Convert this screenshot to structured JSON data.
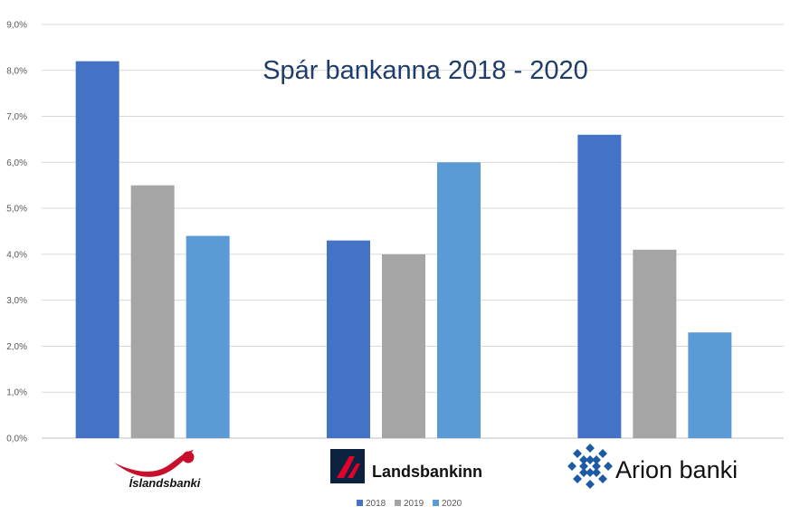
{
  "chart_data": {
    "type": "bar",
    "title": "Spár bankanna 2018 - 2020",
    "categories": [
      "Íslandsbanki",
      "Landsbankinn",
      "Arion banki"
    ],
    "series": [
      {
        "name": "2018",
        "values": [
          8.2,
          4.3,
          6.6
        ],
        "color": "#4472c4"
      },
      {
        "name": "2019",
        "values": [
          5.5,
          4.0,
          4.1
        ],
        "color": "#a5a5a5"
      },
      {
        "name": "2020",
        "values": [
          4.4,
          6.0,
          2.3
        ],
        "color": "#5b9bd5"
      }
    ],
    "ylim": [
      0,
      9
    ],
    "yticks": [
      "0,0%",
      "1,0%",
      "2,0%",
      "3,0%",
      "4,0%",
      "5,0%",
      "6,0%",
      "7,0%",
      "8,0%",
      "9,0%"
    ],
    "grid": true,
    "legend": "bottom",
    "category_display": "logos",
    "logo_colors": {
      "islandsbanki": "#c8102e",
      "landsbankinn": "#0c2340",
      "arion": "#1d5aa5"
    }
  }
}
